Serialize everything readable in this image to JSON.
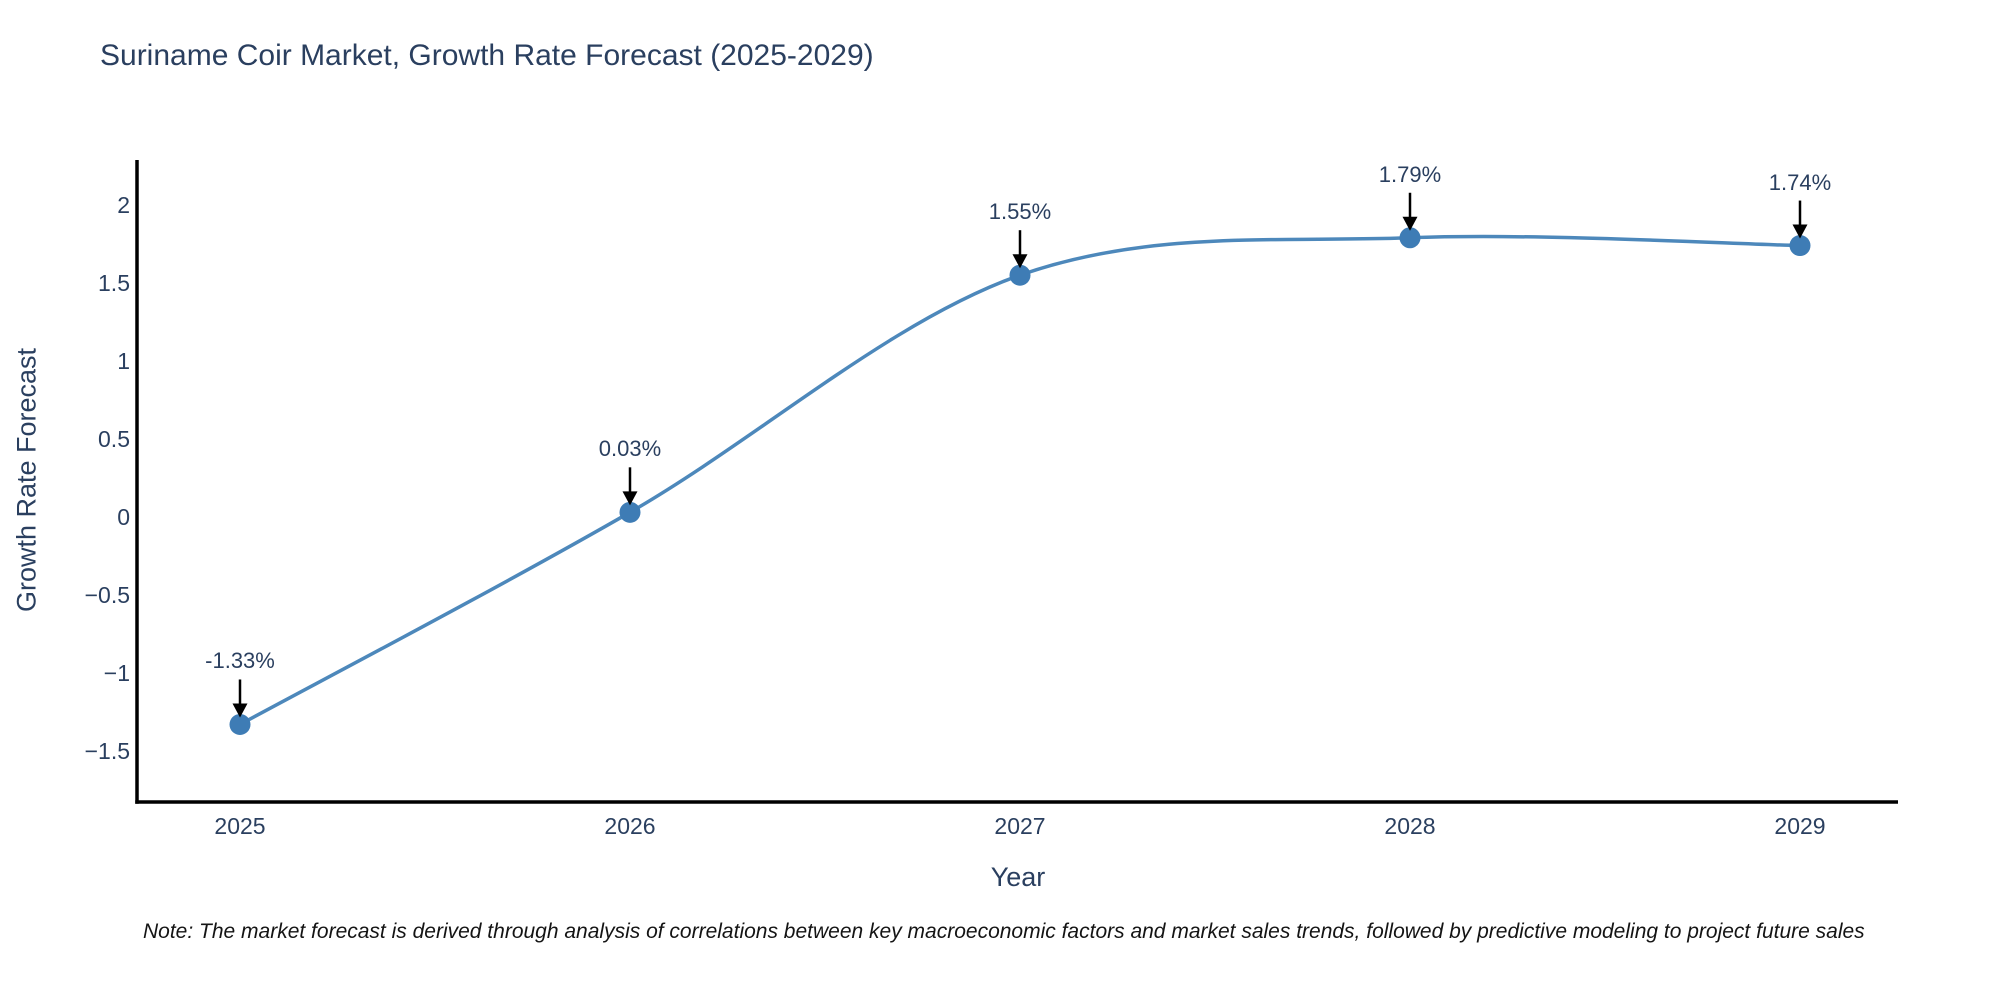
{
  "title": "Suriname Coir Market, Growth Rate Forecast (2025-2029)",
  "footnote": "Note: The market forecast is derived through analysis of correlations between key macroeconomic factors and market sales trends, followed by predictive modeling to project future sales",
  "chart_data": {
    "type": "line",
    "line_shape": "spline",
    "title": "Suriname Coir Market, Growth Rate Forecast (2025-2029)",
    "xlabel": "Year",
    "ylabel": "Growth Rate Forecast",
    "categories": [
      "2025",
      "2026",
      "2027",
      "2028",
      "2029"
    ],
    "values": [
      -1.33,
      0.03,
      1.55,
      1.79,
      1.74
    ],
    "point_labels": [
      "-1.33%",
      "0.03%",
      "1.55%",
      "1.79%",
      "1.74%"
    ],
    "y_ticks": [
      {
        "label": "2",
        "value": 2
      },
      {
        "label": "1.5",
        "value": 1.5
      },
      {
        "label": "1",
        "value": 1
      },
      {
        "label": "0.5",
        "value": 0.5
      },
      {
        "label": "0",
        "value": 0
      },
      {
        "label": "−0.5",
        "value": -0.5
      },
      {
        "label": "−1",
        "value": -1
      },
      {
        "label": "−1.5",
        "value": -1.5
      }
    ],
    "ylim": [
      -1.83,
      2.29
    ],
    "grid": false,
    "legend": "none",
    "annotations_style": "value labels with downward black arrows above each point",
    "colors": {
      "line": "#4d88bb",
      "marker": "#3e7cb5",
      "axis": "#000000",
      "arrow": "#000000",
      "text": "#2a3f5f",
      "note": "#141414",
      "background": "#ffffff"
    }
  }
}
